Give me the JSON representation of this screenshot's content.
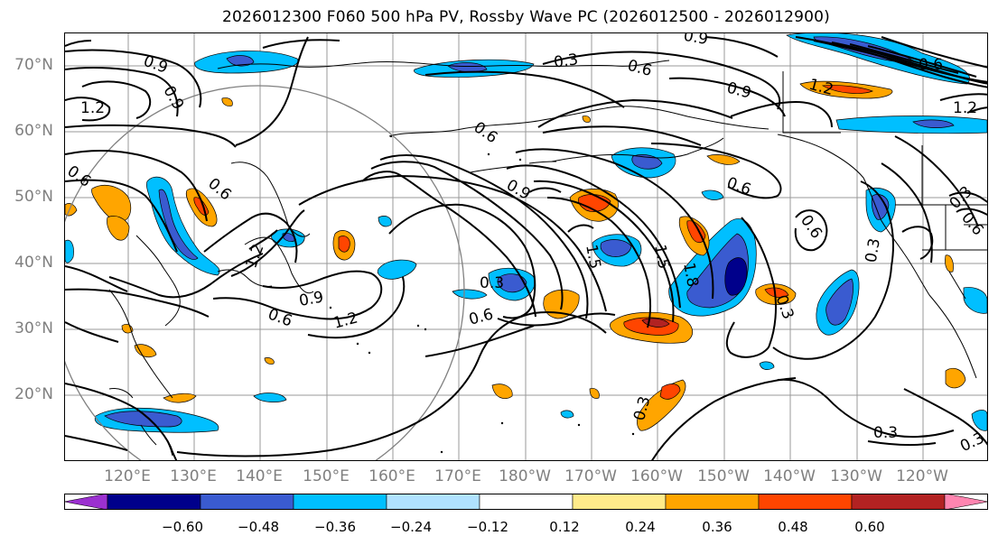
{
  "title": "2026012300 F060 500 hPa PV, Rossby Wave PC (2026012500 - 2026012900)",
  "lat_labels": [
    "70°N",
    "60°N",
    "50°N",
    "40°N",
    "30°N",
    "20°N"
  ],
  "lon_labels": [
    "120°E",
    "130°E",
    "140°E",
    "150°E",
    "160°E",
    "170°E",
    "180°W",
    "170°W",
    "160°W",
    "150°W",
    "140°W",
    "130°W",
    "120°W"
  ],
  "colorbar": {
    "ticks": [
      "−0.60",
      "−0.48",
      "−0.36",
      "−0.24",
      "−0.12",
      "0.12",
      "0.24",
      "0.36",
      "0.48",
      "0.60"
    ],
    "colors": [
      "#9b30d0",
      "#00008b",
      "#3a5bd0",
      "#00bfff",
      "#b0e2ff",
      "#ffffff",
      "#ffeb8a",
      "#ffa500",
      "#ff4500",
      "#b22222",
      "#ff85b0"
    ]
  },
  "contour_labels": {
    "c1": "0.9",
    "c2": "0.9",
    "c3": "0.3",
    "c4": "0.6",
    "c5": "0.9",
    "c6": "1.2",
    "c7": "1.2",
    "c8": "0.6",
    "c9": "0.6",
    "c10": "1.2",
    "c11": "0.9",
    "c12": "0.6",
    "c13": "0.6",
    "c14": "0.9",
    "c15": "0.9",
    "c16": "0.6",
    "c17": "1.2",
    "c18": "0.3",
    "c19": "0.6",
    "c20": "1.5",
    "c21": "1.5",
    "c22": "1.8",
    "c23": "0.3",
    "c24": "0.3",
    "c25": "0.6",
    "c26": "0.3",
    "c27": "0.6",
    "c28": "0.3",
    "c29": "0.3",
    "c30": "0.3",
    "c31": "0.6",
    "c32": "1.2"
  }
}
